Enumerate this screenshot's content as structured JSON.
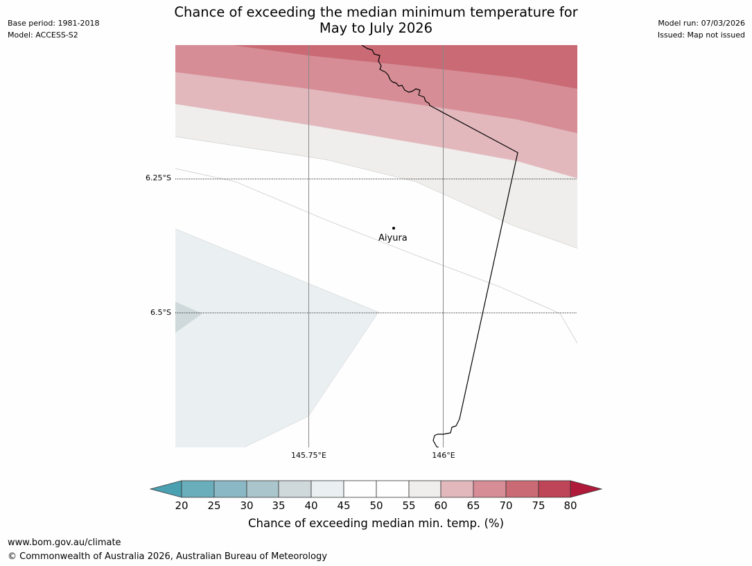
{
  "title": {
    "line1": "Chance of exceeding the median minimum temperature for",
    "line2": "May to July 2026"
  },
  "meta_left": {
    "base_period": "Base period: 1981-2018",
    "model": "Model: ACCESS-S2"
  },
  "meta_right": {
    "model_run": "Model run: 07/03/2026",
    "issued": "Issued: Map not issued"
  },
  "map": {
    "place_label": "Aiyura",
    "lat_labels": [
      "6.25°S",
      "6.5°S"
    ],
    "lon_labels": [
      "145.75°E",
      "146°E"
    ]
  },
  "colorbar": {
    "ticks": [
      "20",
      "25",
      "30",
      "35",
      "40",
      "45",
      "50",
      "55",
      "60",
      "65",
      "70",
      "75",
      "80"
    ],
    "colors": {
      "lt20": "#4aa0b0",
      "c20_25": "#6aaebc",
      "c25_30": "#8bb8c5",
      "c30_35": "#aac5cb",
      "c35_40": "#cfd9dc",
      "c40_45": "#eaf0f2",
      "c45_50": "#fefefe",
      "c50_55": "#fefefe",
      "c55_60": "#efeeec",
      "c60_65": "#e2b8bd",
      "c65_70": "#d68d95",
      "c70_75": "#c96a75",
      "c75_80": "#be4457",
      "gt80": "#b01a3a"
    },
    "label": "Chance of exceeding median min. temp. (%)"
  },
  "footer": {
    "url": "www.bom.gov.au/climate",
    "copyright": "© Commonwealth of Australia 2026, Australian Bureau of Meteorology"
  }
}
